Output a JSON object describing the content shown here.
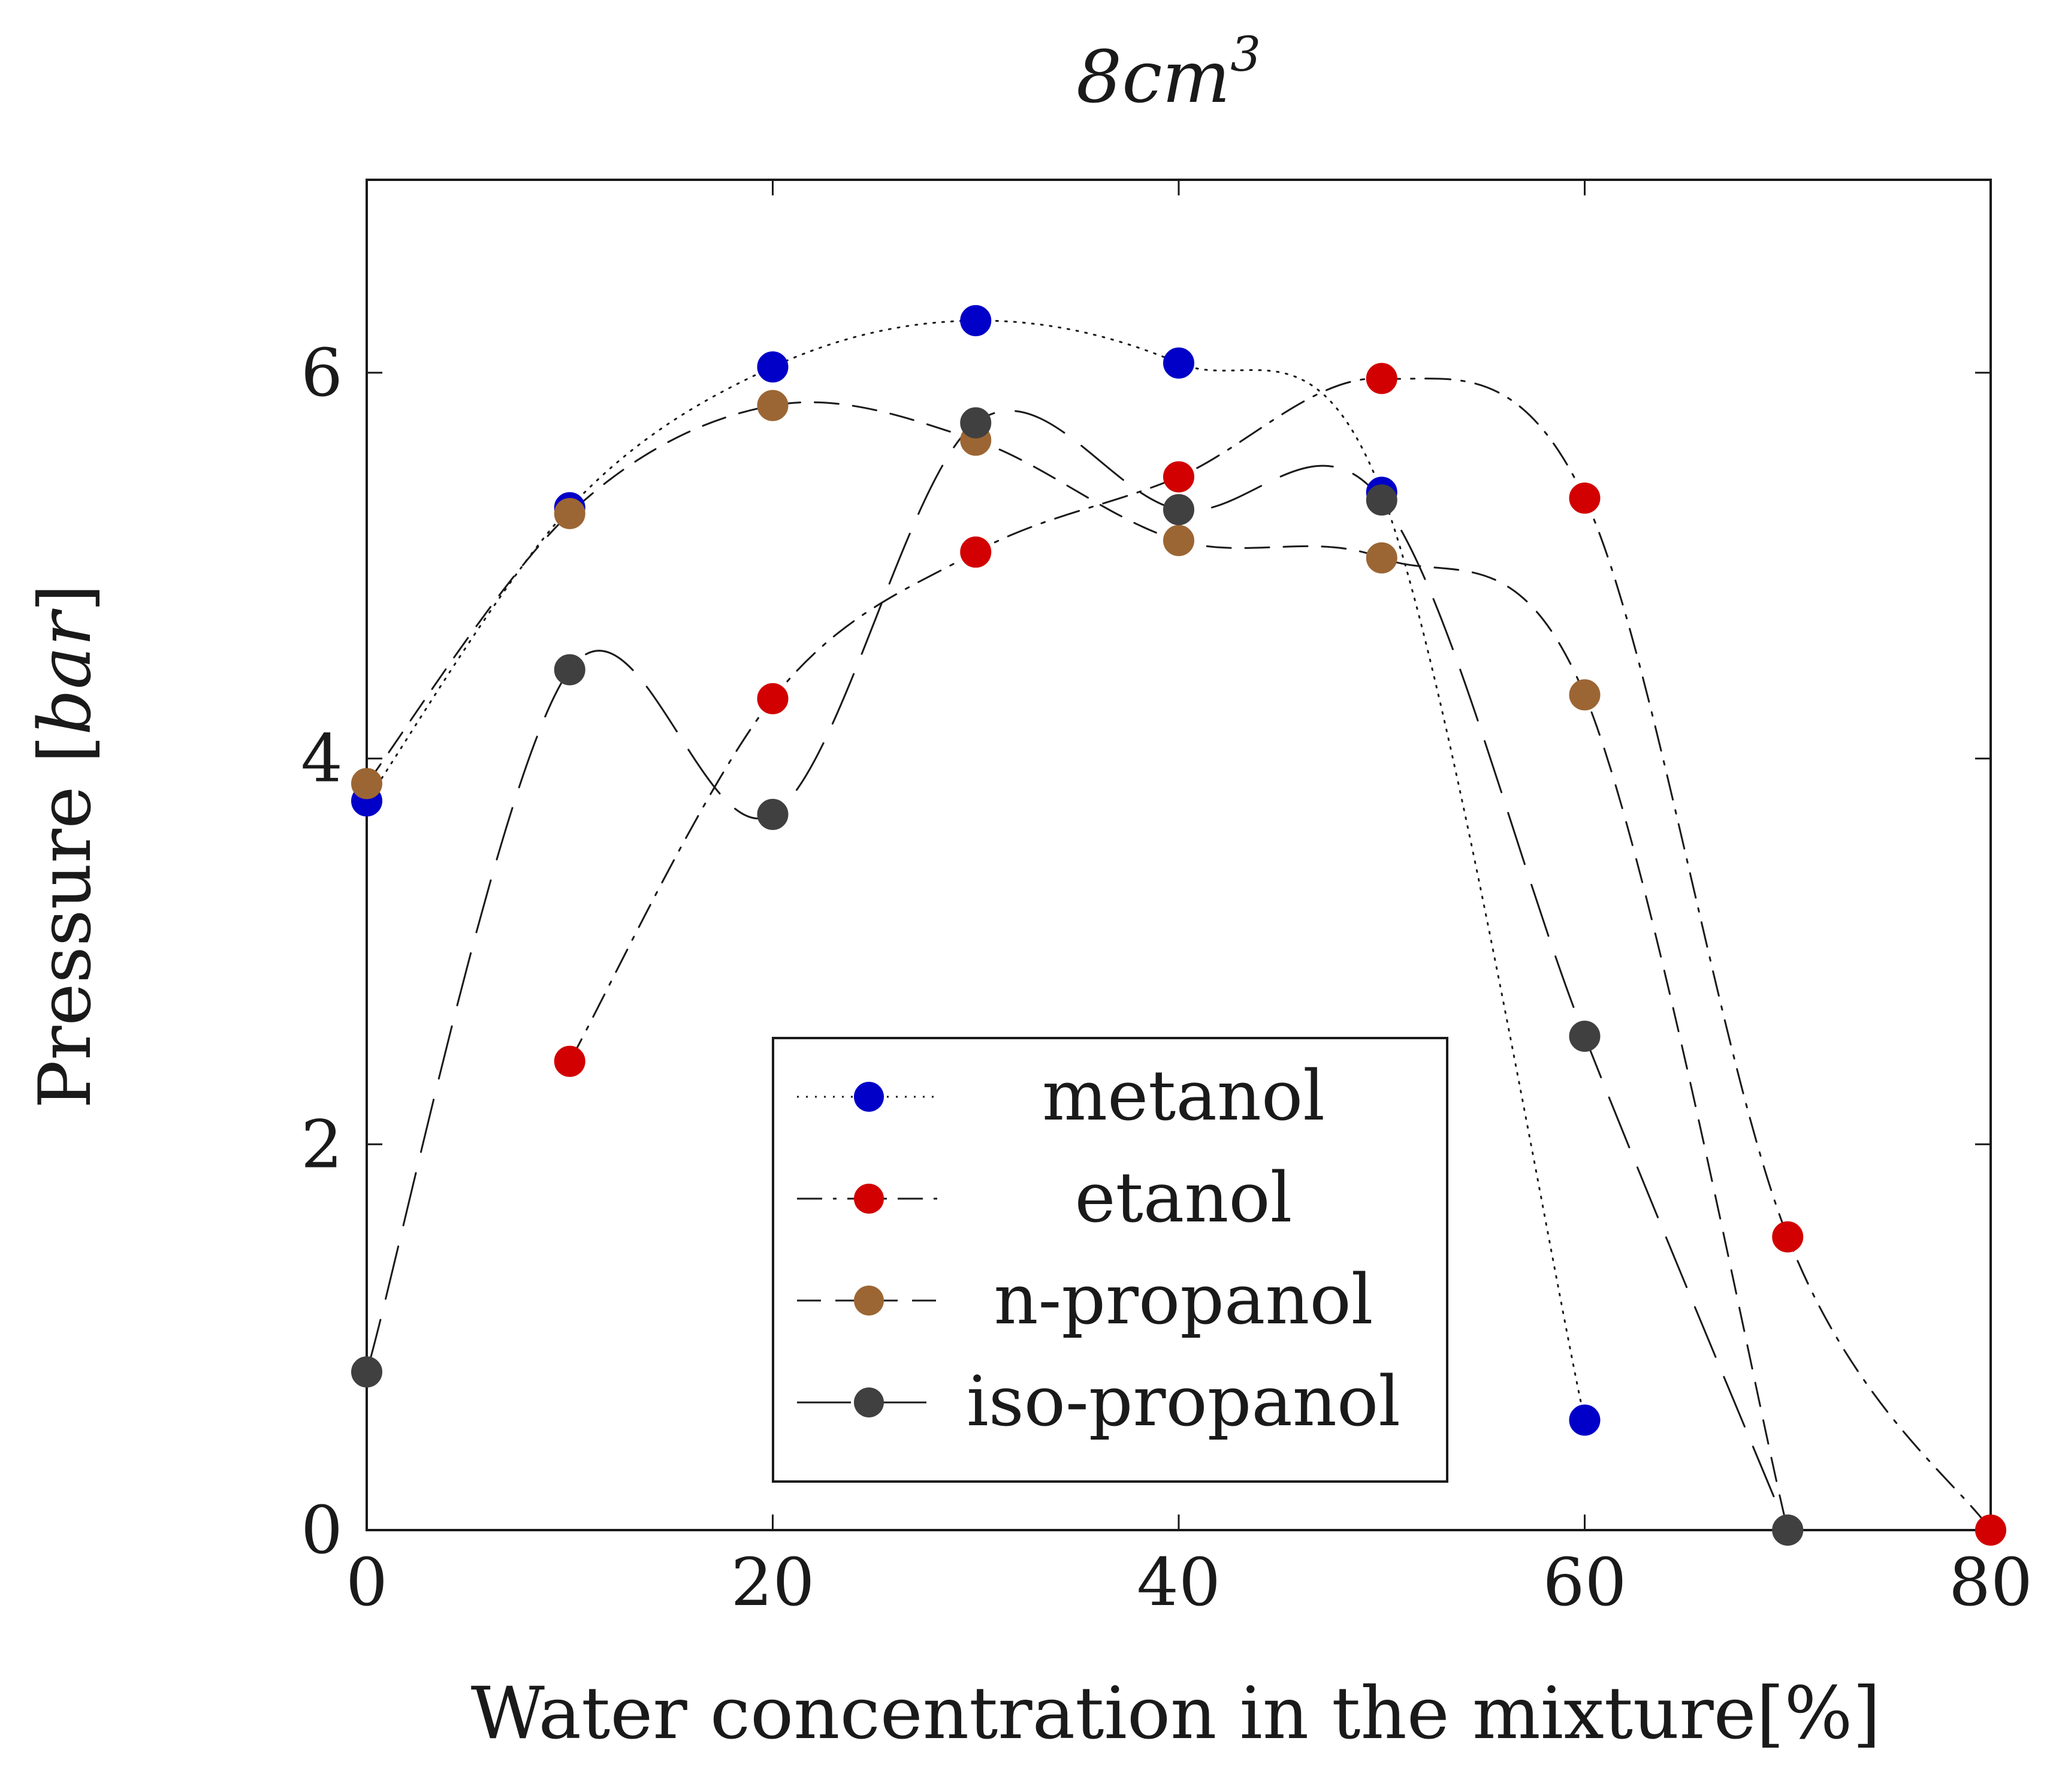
{
  "chart_data": {
    "type": "line",
    "title_main": "8cm",
    "title_sup": "3",
    "xlabel": "Water concentration in the mixture[%]",
    "ylabel_text": "Pressure ",
    "ylabel_open": "[",
    "ylabel_unit": "bar",
    "ylabel_close": "]",
    "xlim": [
      0,
      80
    ],
    "ylim": [
      0,
      7
    ],
    "xticks": [
      0,
      20,
      40,
      60,
      80
    ],
    "yticks": [
      0,
      2,
      4,
      6
    ],
    "grid": false,
    "legend_position": "bottom-center",
    "series": [
      {
        "name": "metanol",
        "color": "#0000c8",
        "line_style": "dotted",
        "x": [
          0,
          10,
          20,
          30,
          40,
          50,
          60
        ],
        "y": [
          3.78,
          5.3,
          6.03,
          6.27,
          6.05,
          5.38,
          0.57
        ]
      },
      {
        "name": "etanol",
        "color": "#d20000",
        "line_style": "dashdot",
        "x": [
          10,
          20,
          30,
          40,
          50,
          60,
          70,
          80
        ],
        "y": [
          2.43,
          4.31,
          5.07,
          5.46,
          5.97,
          5.35,
          1.52,
          0.0
        ]
      },
      {
        "name": "n-propanol",
        "color": "#9c6634",
        "line_style": "dashed",
        "x": [
          0,
          10,
          20,
          30,
          40,
          50,
          60,
          70
        ],
        "y": [
          3.87,
          5.27,
          5.83,
          5.65,
          5.13,
          5.04,
          4.33,
          0.0
        ]
      },
      {
        "name": "iso-propanol",
        "color": "#404040",
        "line_style": "longdash",
        "x": [
          0,
          10,
          20,
          30,
          40,
          50,
          60,
          70
        ],
        "y": [
          0.82,
          4.46,
          3.71,
          5.74,
          5.29,
          5.34,
          2.56,
          0.0
        ]
      }
    ]
  }
}
